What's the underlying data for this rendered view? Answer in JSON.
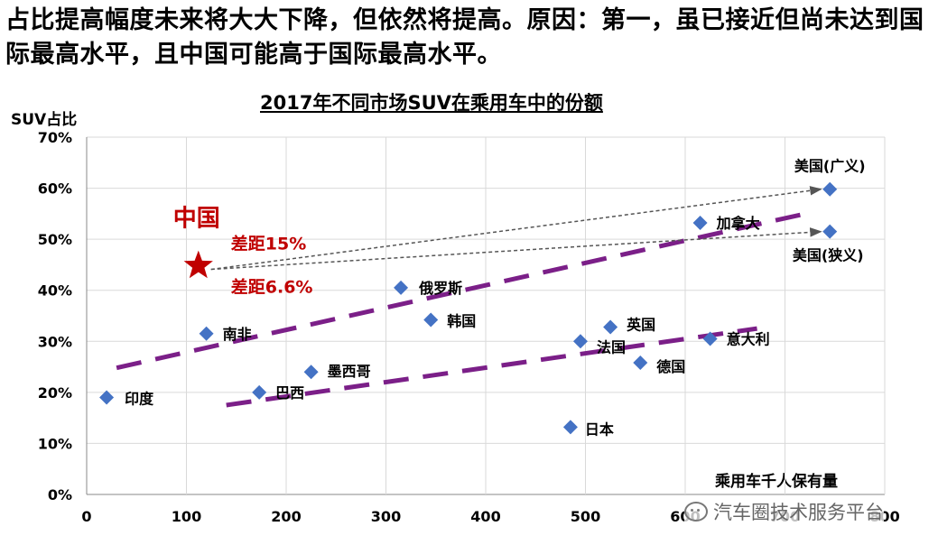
{
  "headline": "占比提高幅度未来将大大下降，但依然将提高。原因：第一，虽已接近但尚未达到国际最高水平，且中国可能高于国际最高水平。",
  "watermark": "汽车圈技术服务平台",
  "colors": {
    "marker": "#4472c4",
    "trend": "#7b1f88",
    "china": "#c00000",
    "grid": "#d9d9d9",
    "arrow": "#555555"
  },
  "chart_data": {
    "type": "scatter",
    "title": "2017年不同市场SUV在乘用车中的份额",
    "xlabel": "乘用车千人保有量",
    "ylabel": "SUV占比",
    "xlim": [
      0,
      800
    ],
    "ylim": [
      0,
      0.7
    ],
    "x_ticks": [
      0,
      100,
      200,
      300,
      400,
      500,
      600,
      700,
      800
    ],
    "y_ticks": [
      0,
      0.1,
      0.2,
      0.3,
      0.4,
      0.5,
      0.6,
      0.7
    ],
    "y_tick_labels": [
      "0%",
      "10%",
      "20%",
      "30%",
      "40%",
      "50%",
      "60%",
      "70%"
    ],
    "grid": true,
    "points": [
      {
        "name": "印度",
        "x": 20,
        "y": 0.19
      },
      {
        "name": "南非",
        "x": 120,
        "y": 0.315
      },
      {
        "name": "巴西",
        "x": 173,
        "y": 0.2
      },
      {
        "name": "墨西哥",
        "x": 225,
        "y": 0.24
      },
      {
        "name": "俄罗斯",
        "x": 315,
        "y": 0.405
      },
      {
        "name": "韩国",
        "x": 345,
        "y": 0.342
      },
      {
        "name": "日本",
        "x": 485,
        "y": 0.132
      },
      {
        "name": "法国",
        "x": 495,
        "y": 0.3
      },
      {
        "name": "英国",
        "x": 525,
        "y": 0.328
      },
      {
        "name": "德国",
        "x": 555,
        "y": 0.258
      },
      {
        "name": "意大利",
        "x": 625,
        "y": 0.305
      },
      {
        "name": "加拿大",
        "x": 615,
        "y": 0.532
      },
      {
        "name": "美国(广义)",
        "x": 745,
        "y": 0.598
      },
      {
        "name": "美国(狭义)",
        "x": 745,
        "y": 0.515
      }
    ],
    "china": {
      "name": "中国",
      "x": 112,
      "y": 0.448
    },
    "trend_lines": [
      {
        "name": "upper",
        "from": [
          30,
          0.248
        ],
        "to": [
          725,
          0.552
        ]
      },
      {
        "name": "lower",
        "from": [
          140,
          0.175
        ],
        "to": [
          672,
          0.325
        ]
      }
    ],
    "annotations": [
      {
        "text": "差距15%"
      },
      {
        "text": "差距6.6%"
      }
    ]
  }
}
